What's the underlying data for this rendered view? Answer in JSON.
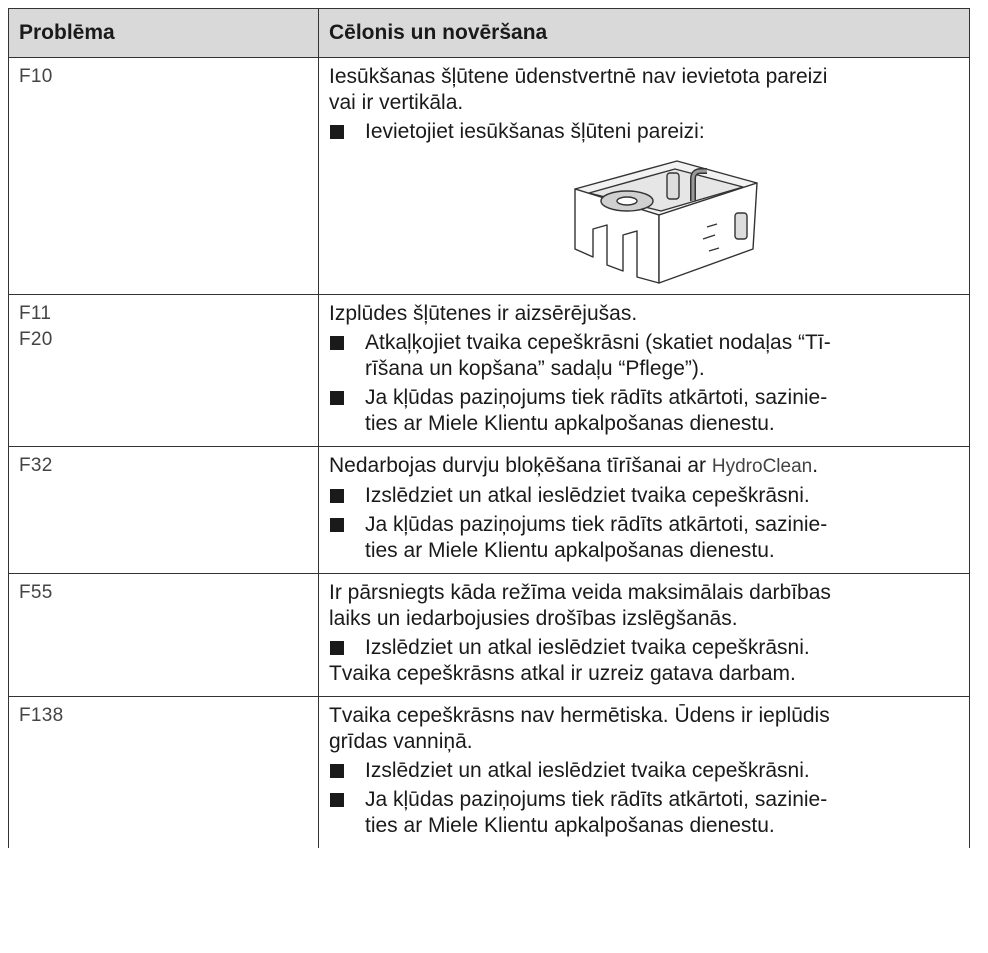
{
  "header": {
    "columns": [
      "Problēma",
      "Cēlonis un novēršana"
    ]
  },
  "rows": [
    {
      "codes": [
        "F10"
      ],
      "blocks": [
        {
          "text": [
            "Iesūkšanas šļūtene ūdenstvertnē nav ievietota pareizi",
            "vai ir vertikāla."
          ]
        },
        {
          "item": [
            "Ievietojiet iesūkšanas šļūteni pareizi:"
          ]
        }
      ]
    },
    {
      "codes": [
        "F11",
        "F20"
      ],
      "blocks": [
        {
          "text": [
            "Izplūdes šļūtenes ir aizsērējušas."
          ]
        },
        {
          "item": [
            "Atkaļķojiet tvaika cepeškrāsni (skatiet nodaļas “Tī-",
            "rīšana un kopšana” sadaļu “Pflege”)."
          ]
        },
        {
          "item": [
            "Ja kļūdas paziņojums tiek rādīts atkārtoti, sazinie-",
            "ties ar Miele Klientu apkalpošanas dienestu."
          ]
        }
      ]
    },
    {
      "codes": [
        "F32"
      ],
      "blocks": [
        {
          "text": [
            "Nedarbojas durvju bloķēšana tīrīšanai ar "
          ],
          "term": "HydroClean",
          "end": "."
        },
        {
          "item": [
            "Izslēdziet un atkal ieslēdziet tvaika cepeškrāsni."
          ]
        },
        {
          "item": [
            "Ja kļūdas paziņojums tiek rādīts atkārtoti, sazinie-",
            "ties ar Miele Klientu apkalpošanas dienestu."
          ]
        }
      ]
    },
    {
      "codes": [
        "F55"
      ],
      "blocks": [
        {
          "text": [
            "Ir pārsniegts kāda režīma veida maksimālais darbības",
            "laiks un iedarbojusies drošības izslēgšanās."
          ]
        },
        {
          "item": [
            "Izslēdziet un atkal ieslēdziet tvaika cepeškrāsni."
          ]
        },
        {
          "text": [
            "Tvaika cepeškrāsns atkal ir uzreiz gatava darbam."
          ]
        }
      ]
    },
    {
      "codes": [
        "F138"
      ],
      "blocks": [
        {
          "text": [
            "Tvaika cepeškrāsns nav hermētiska. Ūdens ir ieplūdis",
            "grīdas vanniņā."
          ]
        },
        {
          "item": [
            "Izslēdziet un atkal ieslēdziet tvaika cepeškrāsni."
          ]
        },
        {
          "item": [
            "Ja kļūdas paziņojums tiek rādīts atkārtoti, sazinie-",
            "ties ar Miele Klientu apkalpošanas dienestu."
          ]
        }
      ]
    }
  ]
}
